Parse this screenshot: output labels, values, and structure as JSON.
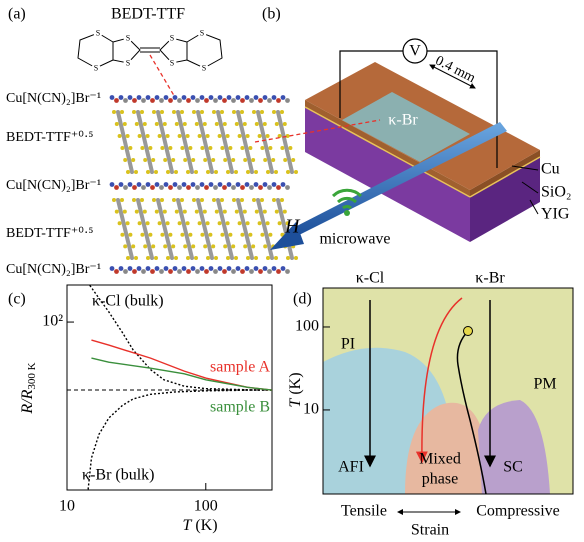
{
  "panel_a": {
    "label": "(a)",
    "molecule": "BEDT-TTF",
    "atom": "S",
    "layers": [
      "Cu[N(CN)₂]Br⁻¹",
      "BEDT-TTF⁺⁰·⁵",
      "Cu[N(CN)₂]Br⁻¹",
      "BEDT-TTF⁺⁰·⁵",
      "Cu[N(CN)₂]Br⁻¹"
    ]
  },
  "panel_b": {
    "label": "(b)",
    "voltmeter": "V",
    "distance": "0.4 mm",
    "film": "κ-Br",
    "field": "H",
    "layers": [
      "Cu",
      "SiO₂",
      "YIG"
    ],
    "source": "microwave"
  },
  "chart_data": [
    {
      "type": "line",
      "label": "(c)",
      "xscale": "log",
      "yscale": "log",
      "xlabel": [
        "T",
        " (K)"
      ],
      "ylabel": [
        "R/R",
        "300 K"
      ],
      "xlim": [
        10,
        300
      ],
      "ylim": [
        0.00115,
        1230
      ],
      "xticks": [
        10,
        100
      ],
      "yticks": [
        {
          "value": 100,
          "label": "10²"
        }
      ],
      "hline": 1,
      "series": [
        {
          "name": "κ-Cl (bulk)",
          "color": "#000000",
          "line_style": "dotted",
          "x": [
            14.6,
            17,
            20,
            25,
            30,
            40,
            50,
            70,
            100,
            200,
            300
          ],
          "y": [
            1200,
            500,
            200,
            50,
            15,
            4,
            2,
            1.3,
            1.1,
            1.02,
            1
          ]
        },
        {
          "name": "κ-Br (bulk)",
          "color": "#000000",
          "line_style": "dotted",
          "x": [
            14.2,
            15,
            17,
            20,
            25,
            30,
            40,
            60,
            100,
            200,
            300
          ],
          "y": [
            0.0012,
            0.01,
            0.05,
            0.15,
            0.35,
            0.55,
            0.75,
            0.88,
            0.95,
            0.99,
            1
          ]
        },
        {
          "name": "sample A",
          "color": "#e8312a",
          "line_style": "solid",
          "x": [
            15,
            20,
            40,
            70,
            100,
            200,
            300
          ],
          "y": [
            29.6,
            21,
            8.7,
            3.6,
            2.25,
            1.2,
            1
          ]
        },
        {
          "name": "sample B",
          "color": "#3a8f3c",
          "line_style": "solid",
          "x": [
            15,
            20,
            40,
            70,
            100,
            200,
            300
          ],
          "y": [
            8.7,
            6.6,
            4.4,
            3,
            2,
            1.2,
            1
          ]
        }
      ]
    },
    {
      "type": "phase-diagram",
      "label": "(d)",
      "yscale": "log",
      "ylabel": [
        "T",
        " (K)"
      ],
      "ylim": [
        0.97,
        295
      ],
      "yticks": [
        10,
        100
      ],
      "compounds": [
        "κ-Cl",
        "κ-Br"
      ],
      "regions": [
        "PI",
        "PM",
        "AFI",
        "Mixed",
        "phase",
        "SC"
      ],
      "xlabels": [
        "Tensile",
        "Compressive"
      ],
      "xlabel": "Strain"
    }
  ]
}
